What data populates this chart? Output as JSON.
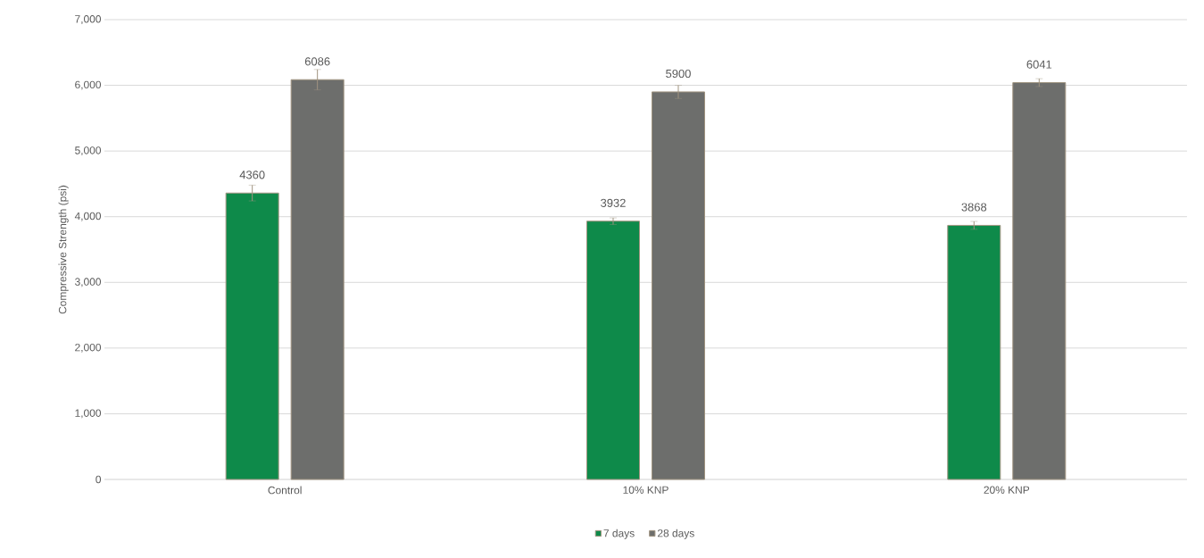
{
  "chart_data": {
    "type": "bar",
    "ylabel": "Compressive Strength (psi)",
    "categories": [
      "Control",
      "10% KNP",
      "20% KNP"
    ],
    "series": [
      {
        "name": "7 days",
        "color": "#0e8a4a",
        "values": [
          4360,
          3932,
          3868
        ],
        "errors": [
          120,
          50,
          60
        ]
      },
      {
        "name": "28 days",
        "color": "#6d6e6c",
        "values": [
          6086,
          5900,
          6041
        ],
        "errors": [
          155,
          100,
          60
        ]
      }
    ],
    "ylim": [
      0,
      7000
    ],
    "yticks": [
      0,
      {
        "value": 1000,
        "label": "1,000"
      },
      {
        "value": 2000,
        "label": "2,000"
      },
      {
        "value": 3000,
        "label": "3,000"
      },
      {
        "value": 4000,
        "label": "4,000"
      },
      {
        "value": 5000,
        "label": "5,000"
      },
      {
        "value": 6000,
        "label": "6,000"
      },
      {
        "value": 7000,
        "label": "7,000"
      }
    ],
    "grid": "y",
    "legend": "bottom",
    "data_labels": true
  }
}
